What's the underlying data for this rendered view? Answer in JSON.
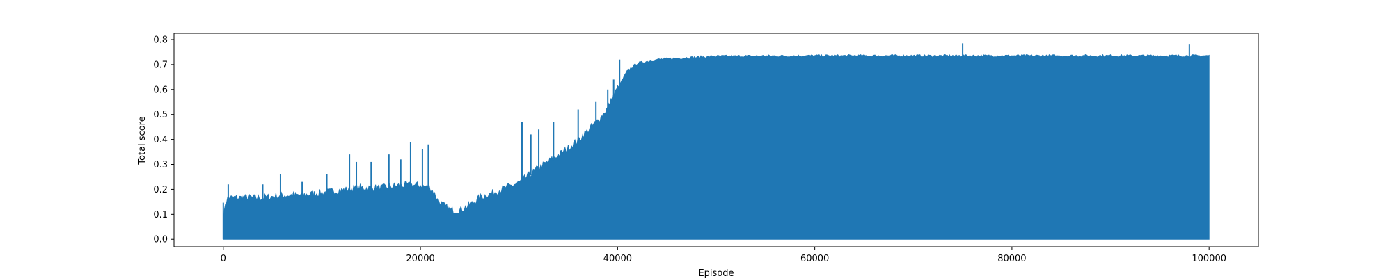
{
  "chart_data": {
    "type": "line",
    "title": "",
    "xlabel": "Episode",
    "ylabel": "Total score",
    "xlim": [
      -5000,
      105000
    ],
    "ylim": [
      -0.03,
      0.825
    ],
    "x_ticks": [
      0,
      20000,
      40000,
      60000,
      80000,
      100000
    ],
    "x_tick_labels": [
      "0",
      "20000",
      "40000",
      "60000",
      "80000",
      "100000"
    ],
    "y_ticks": [
      0.0,
      0.1,
      0.2,
      0.3,
      0.4,
      0.5,
      0.6,
      0.7,
      0.8
    ],
    "y_tick_labels": [
      "0.0",
      "0.1",
      "0.2",
      "0.3",
      "0.4",
      "0.5",
      "0.6",
      "0.7",
      "0.8"
    ],
    "grid": false,
    "legend": "none",
    "series": [
      {
        "color": "#1f77b4",
        "x_range": [
          0,
          100000
        ],
        "y_min": 0.0,
        "envelope_x": [
          0,
          200,
          500,
          1000,
          2000,
          4000,
          6000,
          8000,
          10000,
          12000,
          14000,
          16000,
          18000,
          20000,
          21000,
          22000,
          23000,
          24000,
          25000,
          26000,
          28000,
          30000,
          32000,
          34000,
          36000,
          38000,
          39000,
          40000,
          41000,
          42000,
          44000,
          46000,
          50000,
          60000,
          70000,
          80000,
          90000,
          100000
        ],
        "envelope_y": [
          0.05,
          0.14,
          0.16,
          0.16,
          0.16,
          0.16,
          0.17,
          0.17,
          0.18,
          0.19,
          0.2,
          0.2,
          0.21,
          0.21,
          0.2,
          0.14,
          0.11,
          0.11,
          0.13,
          0.16,
          0.19,
          0.22,
          0.28,
          0.33,
          0.39,
          0.47,
          0.52,
          0.6,
          0.67,
          0.7,
          0.715,
          0.72,
          0.728,
          0.73,
          0.73,
          0.73,
          0.73,
          0.73
        ],
        "spikes": [
          {
            "x": 500,
            "y": 0.22
          },
          {
            "x": 4000,
            "y": 0.22
          },
          {
            "x": 5800,
            "y": 0.26
          },
          {
            "x": 8000,
            "y": 0.23
          },
          {
            "x": 10500,
            "y": 0.26
          },
          {
            "x": 12800,
            "y": 0.34
          },
          {
            "x": 13500,
            "y": 0.31
          },
          {
            "x": 15000,
            "y": 0.31
          },
          {
            "x": 16800,
            "y": 0.34
          },
          {
            "x": 18000,
            "y": 0.32
          },
          {
            "x": 19000,
            "y": 0.39
          },
          {
            "x": 20200,
            "y": 0.36
          },
          {
            "x": 20800,
            "y": 0.38
          },
          {
            "x": 30300,
            "y": 0.47
          },
          {
            "x": 31200,
            "y": 0.42
          },
          {
            "x": 32000,
            "y": 0.44
          },
          {
            "x": 33500,
            "y": 0.47
          },
          {
            "x": 36000,
            "y": 0.52
          },
          {
            "x": 37800,
            "y": 0.55
          },
          {
            "x": 39000,
            "y": 0.6
          },
          {
            "x": 39600,
            "y": 0.64
          },
          {
            "x": 40200,
            "y": 0.72
          },
          {
            "x": 75000,
            "y": 0.785
          },
          {
            "x": 98000,
            "y": 0.78
          }
        ]
      }
    ]
  }
}
